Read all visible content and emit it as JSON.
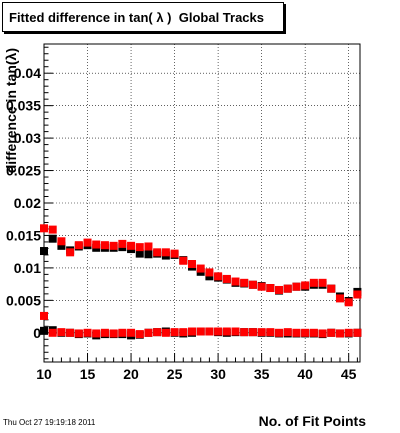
{
  "chart_data": {
    "type": "scatter",
    "title": "Fitted difference in tan( λ )  Global Tracks",
    "xlabel": "No. of Fit Points",
    "ylabel": "difference in tan(λ)",
    "xlim": [
      10,
      46.3
    ],
    "ylim": [
      -0.0045,
      0.0445
    ],
    "xticks": [
      "10",
      "15",
      "20",
      "25",
      "30",
      "35",
      "40",
      "45"
    ],
    "yticks": [
      "0",
      "0.005",
      "0.01",
      "0.015",
      "0.02",
      "0.025",
      "0.03",
      "0.035",
      "0.04"
    ],
    "grid": true,
    "series": [
      {
        "color": "#000000",
        "x": [
          10,
          11,
          12,
          13,
          14,
          15,
          16,
          17,
          18,
          19,
          20,
          21,
          22,
          23,
          24,
          25,
          26,
          27,
          28,
          29,
          30,
          31,
          32,
          33,
          34,
          35,
          36,
          37,
          38,
          39,
          40,
          41,
          42,
          43,
          44,
          45,
          46
        ],
        "values": [
          0.0126,
          0.0145,
          0.0134,
          0.0127,
          0.0133,
          0.0135,
          0.0131,
          0.0131,
          0.0131,
          0.0132,
          0.0129,
          0.0122,
          0.0121,
          0.0122,
          0.0119,
          0.012,
          0.0112,
          0.0102,
          0.0094,
          0.0087,
          0.0085,
          0.0082,
          0.0077,
          0.0076,
          0.0074,
          0.0072,
          0.0069,
          0.0065,
          0.0068,
          0.0071,
          0.0071,
          0.0074,
          0.0074,
          0.0068,
          0.0056,
          0.0049,
          0.0063
        ]
      },
      {
        "color": "#000000",
        "x": [
          10,
          11,
          12,
          13,
          14,
          15,
          16,
          17,
          18,
          19,
          20,
          21,
          22,
          23,
          24,
          25,
          26,
          27,
          28,
          29,
          30,
          31,
          32,
          33,
          34,
          35,
          36,
          37,
          38,
          39,
          40,
          41,
          42,
          43,
          44,
          45,
          46
        ],
        "values": [
          0.0003,
          0.0004,
          0.0,
          0.0,
          -0.0002,
          -0.0001,
          -0.0004,
          -0.0002,
          -0.0002,
          -0.0002,
          -0.0004,
          -0.0003,
          0.0,
          0.0001,
          0.0002,
          0.0,
          -0.0001,
          0.0,
          0.0002,
          0.0002,
          0.0001,
          0.0,
          0.0001,
          0.0001,
          0.0001,
          0.0,
          0.0,
          -0.0001,
          -0.0001,
          -0.0001,
          -0.0001,
          -0.0001,
          -0.0002,
          0.0,
          -0.0001,
          -0.0001,
          0.0
        ]
      },
      {
        "color": "#ff0000",
        "x": [
          10,
          11,
          12,
          13,
          14,
          15,
          16,
          17,
          18,
          19,
          20,
          21,
          22,
          23,
          24,
          25,
          26,
          27,
          28,
          29,
          30,
          31,
          32,
          33,
          34,
          35,
          36,
          37,
          38,
          39,
          40,
          41,
          42,
          43,
          44,
          45,
          46
        ],
        "values": [
          0.0161,
          0.0159,
          0.0141,
          0.0124,
          0.0135,
          0.0139,
          0.0136,
          0.0135,
          0.0134,
          0.0137,
          0.0134,
          0.0132,
          0.0133,
          0.0124,
          0.0124,
          0.0122,
          0.0111,
          0.0106,
          0.0099,
          0.0093,
          0.0087,
          0.0083,
          0.0079,
          0.0077,
          0.0074,
          0.0071,
          0.0069,
          0.0066,
          0.0068,
          0.0071,
          0.0073,
          0.0077,
          0.0077,
          0.0068,
          0.0053,
          0.0047,
          0.0059
        ]
      },
      {
        "color": "#ff0000",
        "x": [
          10,
          11,
          12,
          13,
          14,
          15,
          16,
          17,
          18,
          19,
          20,
          21,
          22,
          23,
          24,
          25,
          26,
          27,
          28,
          29,
          30,
          31,
          32,
          33,
          34,
          35,
          36,
          37,
          38,
          39,
          40,
          41,
          42,
          43,
          44,
          45,
          46
        ],
        "values": [
          0.0026,
          0.0,
          0.0001,
          0.0,
          -0.0001,
          0.0,
          -0.0001,
          0.0,
          -0.0001,
          0.0,
          0.0,
          -0.0002,
          0.0,
          0.0001,
          0.0,
          0.0001,
          0.0001,
          0.0002,
          0.0002,
          0.0002,
          0.0002,
          0.0002,
          0.0002,
          0.0001,
          0.0001,
          0.0001,
          0.0001,
          0.0,
          0.0001,
          0.0,
          0.0,
          0.0,
          -0.0001,
          0.0,
          -0.0001,
          0.0,
          0.0
        ]
      }
    ]
  },
  "footer": "Thu Oct 27 19:19:18 2011"
}
